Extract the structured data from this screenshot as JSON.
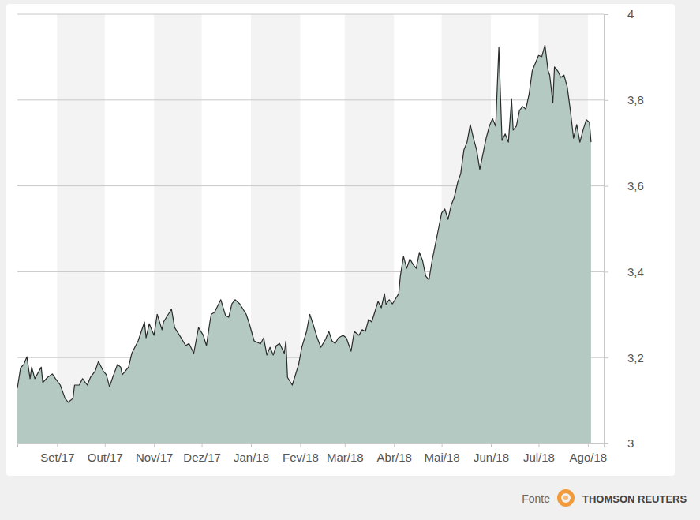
{
  "chart_data": {
    "type": "area",
    "color": "#b3c9c1",
    "grid": true,
    "x": [
      0,
      2,
      4,
      6,
      8,
      9,
      11,
      15,
      16,
      19,
      22,
      24,
      27,
      30,
      32,
      35,
      36,
      39,
      41,
      44,
      46,
      49,
      51,
      54,
      56,
      58,
      60,
      63,
      65,
      66,
      68,
      70,
      72,
      76,
      78,
      80,
      81,
      83,
      86,
      88,
      91,
      92,
      95,
      97,
      99,
      102,
      106,
      108,
      111,
      114,
      117,
      119,
      121,
      122,
      124,
      126,
      128,
      131,
      133,
      135,
      137,
      140,
      144,
      146,
      149,
      153,
      155,
      157,
      159,
      161,
      163,
      165,
      168,
      169,
      170,
      173,
      175,
      177,
      179,
      182,
      184,
      186,
      189,
      191,
      194,
      196,
      198,
      200,
      202,
      205,
      207,
      210,
      212,
      215,
      217,
      219,
      221,
      223,
      225,
      227,
      229,
      231,
      232,
      234,
      236,
      240,
      241,
      243,
      245,
      247,
      249,
      251,
      253,
      255,
      257,
      259,
      261,
      263,
      265,
      267,
      269,
      271,
      273,
      275,
      277,
      279,
      281,
      283,
      285,
      287,
      289,
      291,
      293,
      295,
      297,
      299,
      301,
      303,
      305,
      307,
      309,
      311,
      312,
      314,
      316,
      318,
      320,
      322,
      324,
      326,
      328,
      330,
      332,
      334,
      335,
      337,
      338,
      340,
      342,
      344,
      346,
      348,
      350,
      352,
      354,
      356,
      358,
      360,
      361
    ],
    "values": [
      3.129,
      3.176,
      3.184,
      3.202,
      3.151,
      3.178,
      3.151,
      3.178,
      3.142,
      3.154,
      3.162,
      3.151,
      3.136,
      3.105,
      3.096,
      3.105,
      3.136,
      3.136,
      3.151,
      3.136,
      3.154,
      3.169,
      3.191,
      3.169,
      3.16,
      3.132,
      3.154,
      3.184,
      3.178,
      3.16,
      3.169,
      3.178,
      3.21,
      3.239,
      3.261,
      3.283,
      3.246,
      3.279,
      3.252,
      3.301,
      3.265,
      3.283,
      3.301,
      3.313,
      3.27,
      3.252,
      3.228,
      3.233,
      3.21,
      3.27,
      3.252,
      3.228,
      3.279,
      3.301,
      3.305,
      3.32,
      3.335,
      3.298,
      3.294,
      3.325,
      3.335,
      3.325,
      3.301,
      3.279,
      3.239,
      3.232,
      3.246,
      3.206,
      3.224,
      3.206,
      3.228,
      3.233,
      3.21,
      3.239,
      3.154,
      3.136,
      3.16,
      3.184,
      3.224,
      3.261,
      3.301,
      3.279,
      3.243,
      3.224,
      3.243,
      3.261,
      3.239,
      3.233,
      3.246,
      3.252,
      3.246,
      3.215,
      3.261,
      3.252,
      3.265,
      3.261,
      3.289,
      3.283,
      3.307,
      3.331,
      3.316,
      3.349,
      3.324,
      3.335,
      3.325,
      3.349,
      3.39,
      3.436,
      3.408,
      3.43,
      3.417,
      3.408,
      3.445,
      3.426,
      3.39,
      3.381,
      3.426,
      3.463,
      3.5,
      3.537,
      3.546,
      3.522,
      3.555,
      3.574,
      3.607,
      3.629,
      3.684,
      3.702,
      3.743,
      3.711,
      3.684,
      3.638,
      3.675,
      3.711,
      3.739,
      3.757,
      3.739,
      3.923,
      3.706,
      3.721,
      3.702,
      3.803,
      3.73,
      3.739,
      3.776,
      3.785,
      3.779,
      3.813,
      3.868,
      3.886,
      3.904,
      3.901,
      3.928,
      3.868,
      3.858,
      3.794,
      3.877,
      3.868,
      3.853,
      3.858,
      3.831,
      3.776,
      3.711,
      3.743,
      3.702,
      3.73,
      3.754,
      3.748,
      3.702
    ],
    "xlim": [
      0,
      369
    ],
    "xticks": [
      {
        "value": 25,
        "label": "Set/17"
      },
      {
        "value": 55,
        "label": "Out/17"
      },
      {
        "value": 86,
        "label": "Nov/17"
      },
      {
        "value": 116,
        "label": "Dez/17"
      },
      {
        "value": 147,
        "label": "Jan/18"
      },
      {
        "value": 178,
        "label": "Fev/18"
      },
      {
        "value": 206,
        "label": "Mar/18"
      },
      {
        "value": 237,
        "label": "Abr/18"
      },
      {
        "value": 267,
        "label": "Mai/18"
      },
      {
        "value": 298,
        "label": "Jun/18"
      },
      {
        "value": 328,
        "label": "Jul/18"
      },
      {
        "value": 359,
        "label": "Ago/18"
      }
    ],
    "ylim": [
      3,
      4
    ],
    "yticks": [
      3,
      {
        "value": 3.2,
        "label": "3,2"
      },
      {
        "value": 3.4,
        "label": "3,4"
      },
      {
        "value": 3.6,
        "label": "3,6"
      },
      {
        "value": 3.8,
        "label": "3,8"
      },
      4
    ]
  },
  "source": {
    "label": "Fonte",
    "name": "THOMSON REUTERS"
  }
}
